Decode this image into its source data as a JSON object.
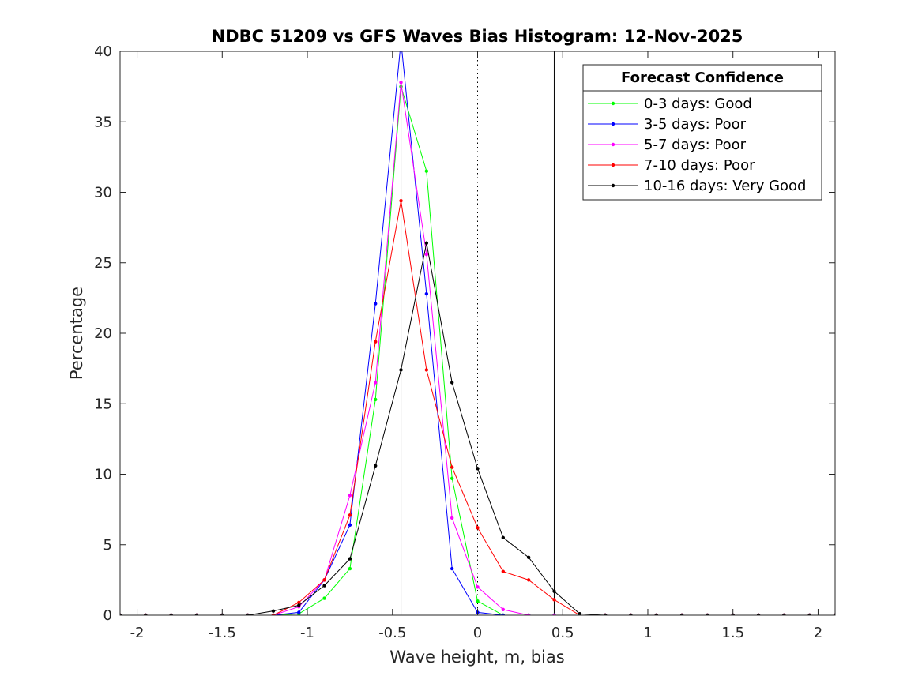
{
  "chart_data": {
    "type": "line",
    "title": "NDBC 51209 vs GFS Waves Bias Histogram: 12-Nov-2025",
    "xlabel": "Wave height, m, bias",
    "ylabel": "Percentage",
    "xlim": [
      -2.1,
      2.1
    ],
    "ylim": [
      0,
      40
    ],
    "xticks": [
      -2,
      -1.5,
      -1,
      -0.5,
      0,
      0.5,
      1,
      1.5,
      2
    ],
    "xtick_labels": [
      "-2",
      "-1.5",
      "-1",
      "-0.5",
      "0",
      "0.5",
      "1",
      "1.5",
      "2"
    ],
    "yticks": [
      0,
      5,
      10,
      15,
      20,
      25,
      30,
      35,
      40
    ],
    "ytick_labels": [
      "0",
      "5",
      "10",
      "15",
      "20",
      "25",
      "30",
      "35",
      "40"
    ],
    "x": [
      -2.1,
      -1.95,
      -1.8,
      -1.65,
      -1.5,
      -1.35,
      -1.2,
      -1.05,
      -0.9,
      -0.75,
      -0.6,
      -0.45,
      -0.3,
      -0.15,
      0.0,
      0.15,
      0.3,
      0.45,
      0.6,
      0.75,
      0.9,
      1.05,
      1.2,
      1.35,
      1.5,
      1.65,
      1.8,
      1.95,
      2.1
    ],
    "series": [
      {
        "name": "0-3 days: Good",
        "color": "#00ff00",
        "values": [
          0,
          0,
          0,
          0,
          0,
          0,
          0,
          0.1,
          1.2,
          3.3,
          15.3,
          37.5,
          31.5,
          9.7,
          1.0,
          0,
          0,
          0,
          0,
          0,
          0,
          0,
          0,
          0,
          0,
          0,
          0,
          0,
          0
        ]
      },
      {
        "name": "3-5 days: Poor",
        "color": "#0000ff",
        "values": [
          0,
          0,
          0,
          0,
          0,
          0,
          0,
          0.2,
          2.5,
          6.4,
          22.1,
          40.7,
          22.8,
          3.3,
          0.2,
          0,
          0,
          0,
          0,
          0,
          0,
          0,
          0,
          0,
          0,
          0,
          0,
          0,
          0
        ]
      },
      {
        "name": "5-7 days: Poor",
        "color": "#ff00ff",
        "values": [
          0,
          0,
          0,
          0,
          0,
          0,
          0,
          0.6,
          2.5,
          8.5,
          16.5,
          37.8,
          25.6,
          6.9,
          2.0,
          0.4,
          0,
          0,
          0,
          0,
          0,
          0,
          0,
          0,
          0,
          0,
          0,
          0,
          0
        ]
      },
      {
        "name": "7-10 days: Poor",
        "color": "#ff0000",
        "values": [
          0,
          0,
          0,
          0,
          0,
          0,
          0,
          0.9,
          2.5,
          7.1,
          19.4,
          29.4,
          17.4,
          10.5,
          6.2,
          3.1,
          2.5,
          1.1,
          0,
          0,
          0,
          0,
          0,
          0,
          0,
          0,
          0,
          0,
          0
        ]
      },
      {
        "name": "10-16 days: Very Good",
        "color": "#000000",
        "values": [
          0,
          0,
          0,
          0,
          0,
          0,
          0.3,
          0.7,
          2.1,
          4.0,
          10.6,
          17.4,
          26.4,
          16.5,
          10.4,
          5.5,
          4.1,
          1.7,
          0.1,
          0,
          0,
          0,
          0,
          0,
          0,
          0,
          0,
          0,
          0
        ]
      }
    ],
    "reference_lines": [
      {
        "x": -0.45,
        "style": "solid"
      },
      {
        "x": 0,
        "style": "dotted"
      },
      {
        "x": 0.45,
        "style": "solid"
      }
    ],
    "legend_title": "Forecast Confidence",
    "legend_position": "top-right",
    "grid": false
  }
}
